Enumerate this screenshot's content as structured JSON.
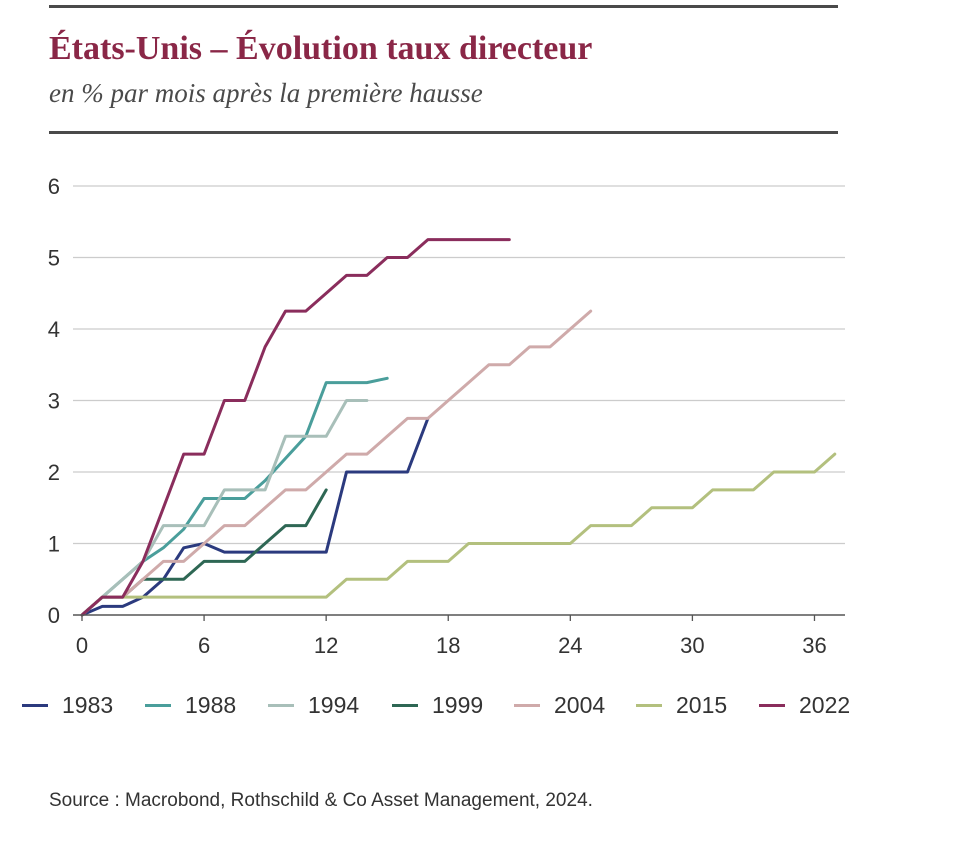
{
  "header": {
    "title": "États-Unis – Évolution taux directeur",
    "subtitle": "en % par mois après la première hausse"
  },
  "footer": {
    "source": "Source : Macrobond, Rothschild & Co Asset Management, 2024."
  },
  "chart_data": {
    "type": "line",
    "title": "États-Unis – Évolution taux directeur",
    "subtitle": "en % par mois après la première hausse",
    "xlim": [
      0,
      37.5
    ],
    "ylim": [
      0,
      6
    ],
    "x_ticks": [
      0,
      6,
      12,
      18,
      24,
      30,
      36
    ],
    "y_ticks": [
      0,
      1,
      2,
      3,
      4,
      5,
      6
    ],
    "grid": "horizontal",
    "legend_position": "bottom",
    "series": [
      {
        "name": "1983",
        "color": "#2b3a7e",
        "x": [
          0,
          1,
          2,
          3,
          4,
          5,
          6,
          7,
          8,
          9,
          10,
          11,
          12,
          13,
          14,
          15,
          16,
          17
        ],
        "y": [
          0,
          0.12,
          0.12,
          0.25,
          0.5,
          0.94,
          1.0,
          0.88,
          0.88,
          0.88,
          0.88,
          0.88,
          0.88,
          2.0,
          2.0,
          2.0,
          2.0,
          2.75
        ]
      },
      {
        "name": "1988",
        "color": "#4a9e9b",
        "x": [
          0,
          1,
          2,
          3,
          4,
          5,
          6,
          7,
          8,
          9,
          10,
          11,
          12,
          13,
          14,
          15
        ],
        "y": [
          0,
          0.25,
          0.5,
          0.75,
          0.94,
          1.2,
          1.63,
          1.63,
          1.63,
          1.88,
          2.19,
          2.5,
          3.25,
          3.25,
          3.25,
          3.31
        ]
      },
      {
        "name": "1994",
        "color": "#a8bfb9",
        "x": [
          0,
          1,
          2,
          3,
          4,
          5,
          6,
          7,
          8,
          9,
          10,
          11,
          12,
          13,
          14
        ],
        "y": [
          0,
          0.25,
          0.5,
          0.75,
          1.25,
          1.25,
          1.25,
          1.75,
          1.75,
          1.75,
          2.5,
          2.5,
          2.5,
          3.0,
          3.0
        ]
      },
      {
        "name": "1999",
        "color": "#2e6754",
        "x": [
          0,
          1,
          2,
          3,
          4,
          5,
          6,
          7,
          8,
          9,
          10,
          11,
          12
        ],
        "y": [
          0,
          0.25,
          0.25,
          0.5,
          0.5,
          0.5,
          0.75,
          0.75,
          0.75,
          1.0,
          1.25,
          1.25,
          1.75
        ]
      },
      {
        "name": "2004",
        "color": "#cfaaaa",
        "x": [
          0,
          1,
          2,
          3,
          4,
          5,
          6,
          7,
          8,
          9,
          10,
          11,
          12,
          13,
          14,
          15,
          16,
          17,
          18,
          19,
          20,
          21,
          22,
          23,
          24,
          25
        ],
        "y": [
          0,
          0.25,
          0.25,
          0.5,
          0.75,
          0.75,
          1.0,
          1.25,
          1.25,
          1.5,
          1.75,
          1.75,
          2.0,
          2.25,
          2.25,
          2.5,
          2.75,
          2.75,
          3.0,
          3.25,
          3.5,
          3.5,
          3.75,
          3.75,
          4.0,
          4.25
        ]
      },
      {
        "name": "2015",
        "color": "#b3c07e",
        "x": [
          0,
          1,
          2,
          3,
          4,
          5,
          6,
          7,
          8,
          9,
          10,
          11,
          12,
          13,
          14,
          15,
          16,
          17,
          18,
          19,
          20,
          21,
          22,
          23,
          24,
          25,
          26,
          27,
          28,
          29,
          30,
          31,
          32,
          33,
          34,
          35,
          36,
          37
        ],
        "y": [
          0,
          0.25,
          0.25,
          0.25,
          0.25,
          0.25,
          0.25,
          0.25,
          0.25,
          0.25,
          0.25,
          0.25,
          0.25,
          0.5,
          0.5,
          0.5,
          0.75,
          0.75,
          0.75,
          1.0,
          1.0,
          1.0,
          1.0,
          1.0,
          1.0,
          1.25,
          1.25,
          1.25,
          1.5,
          1.5,
          1.5,
          1.75,
          1.75,
          1.75,
          2.0,
          2.0,
          2.0,
          2.25
        ]
      },
      {
        "name": "2022",
        "color": "#8a2d5c",
        "x": [
          0,
          1,
          2,
          3,
          4,
          5,
          6,
          7,
          8,
          9,
          10,
          11,
          12,
          13,
          14,
          15,
          16,
          17,
          18,
          19,
          20,
          21
        ],
        "y": [
          0,
          0.25,
          0.25,
          0.75,
          1.5,
          2.25,
          2.25,
          3.0,
          3.0,
          3.75,
          4.25,
          4.25,
          4.5,
          4.75,
          4.75,
          5.0,
          5.0,
          5.25,
          5.25,
          5.25,
          5.25,
          5.25
        ]
      }
    ]
  }
}
